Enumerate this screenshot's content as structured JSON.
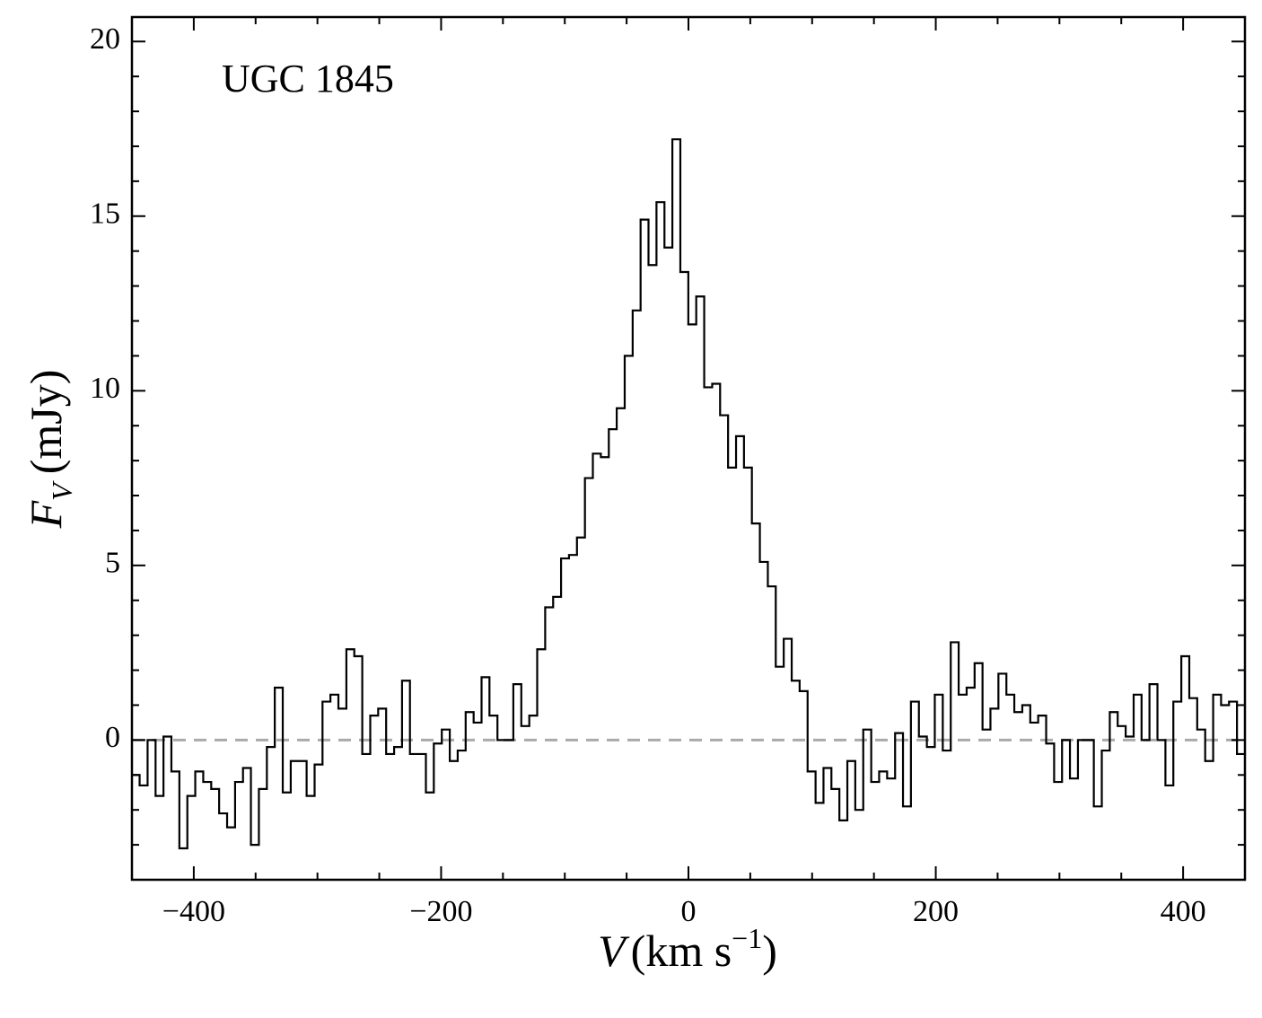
{
  "chart_data": {
    "type": "step",
    "annotation": "UGC 1845",
    "xlabel": {
      "symbol": "V",
      "unit_open": "(km s",
      "exponent": "−1",
      "unit_close": ")"
    },
    "ylabel": {
      "symbol": "F",
      "subscript": "V",
      "unit": "(mJy)"
    },
    "xlim": [
      -450,
      450
    ],
    "ylim": [
      -4,
      20.7
    ],
    "xticks": [
      {
        "value": -400,
        "label": "−400"
      },
      {
        "value": -200,
        "label": "−200"
      },
      0,
      200,
      400
    ],
    "yticks": [
      0,
      5,
      10,
      15,
      20
    ],
    "xminorticks": [
      -350,
      -300,
      -250,
      -150,
      -100,
      -50,
      50,
      100,
      150,
      250,
      300,
      350
    ],
    "yminorticks": [
      -3,
      -2,
      -1,
      1,
      2,
      3,
      4,
      6,
      7,
      8,
      9,
      11,
      12,
      13,
      14,
      16,
      17,
      18,
      19
    ],
    "reference_line": {
      "value": 0,
      "color": "#aaaaaa"
    },
    "x": [
      -447.0,
      -440.6,
      -434.1,
      -427.7,
      -421.3,
      -414.9,
      -408.4,
      -402.0,
      -395.6,
      -389.1,
      -382.7,
      -376.3,
      -369.8,
      -363.4,
      -357.0,
      -350.6,
      -344.1,
      -337.7,
      -331.3,
      -324.8,
      -318.4,
      -312.0,
      -305.5,
      -299.1,
      -292.7,
      -286.3,
      -279.8,
      -273.4,
      -267.0,
      -260.5,
      -254.1,
      -247.7,
      -241.2,
      -234.8,
      -228.4,
      -222.0,
      -215.5,
      -209.1,
      -202.7,
      -196.2,
      -189.8,
      -183.4,
      -176.9,
      -170.5,
      -164.1,
      -157.7,
      -151.2,
      -144.8,
      -138.4,
      -131.9,
      -125.5,
      -119.1,
      -112.6,
      -106.2,
      -99.8,
      -93.4,
      -86.9,
      -80.5,
      -74.1,
      -67.6,
      -61.2,
      -54.8,
      -48.3,
      -41.9,
      -35.5,
      -29.1,
      -22.6,
      -16.2,
      -9.8,
      -3.3,
      3.1,
      9.5,
      16.0,
      22.4,
      28.8,
      35.3,
      41.7,
      48.1,
      54.5,
      61.0,
      67.4,
      73.8,
      80.3,
      86.7,
      93.1,
      99.6,
      106.0,
      112.4,
      118.8,
      125.3,
      131.7,
      138.1,
      144.6,
      151.0,
      157.4,
      163.9,
      170.3,
      176.7,
      183.1,
      189.6,
      196.0,
      202.4,
      208.9,
      215.3,
      221.7,
      228.2,
      234.6,
      241.0,
      247.4,
      253.9,
      260.3,
      266.7,
      273.2,
      279.6,
      286.0,
      292.5,
      298.9,
      305.3,
      311.7,
      318.2,
      324.6,
      331.0,
      337.5,
      343.9,
      350.3,
      356.8,
      363.2,
      369.6,
      376.0,
      382.5,
      388.9,
      395.3,
      401.8,
      408.2,
      414.6,
      421.1,
      427.5,
      433.9,
      440.3,
      446.8
    ],
    "series": [
      {
        "color": "#000000",
        "values": [
          -1.0,
          -1.3,
          0.0,
          -1.6,
          0.1,
          -0.9,
          -3.1,
          -1.6,
          -0.9,
          -1.2,
          -1.4,
          -2.1,
          -2.5,
          -1.2,
          -0.8,
          -3.0,
          -1.4,
          -0.2,
          1.5,
          -1.5,
          -0.6,
          -0.6,
          -1.6,
          -0.7,
          1.1,
          1.3,
          0.9,
          2.6,
          2.4,
          -0.4,
          0.7,
          0.9,
          -0.4,
          -0.2,
          1.7,
          -0.4,
          -0.4,
          -1.5,
          -0.1,
          0.3,
          -0.6,
          -0.3,
          0.8,
          0.5,
          1.8,
          0.7,
          0.0,
          0.0,
          1.6,
          0.4,
          0.7,
          2.6,
          3.8,
          4.1,
          5.2,
          5.3,
          5.8,
          7.5,
          8.2,
          8.1,
          8.9,
          9.5,
          11.0,
          12.3,
          14.9,
          13.6,
          15.4,
          14.1,
          17.2,
          13.4,
          11.9,
          12.7,
          10.1,
          10.2,
          9.3,
          7.8,
          8.7,
          7.8,
          6.2,
          5.1,
          4.4,
          2.1,
          2.9,
          1.7,
          1.4,
          -0.9,
          -1.8,
          -0.8,
          -1.4,
          -2.3,
          -0.6,
          -2.0,
          0.3,
          -1.2,
          -0.9,
          -1.1,
          0.2,
          -1.9,
          1.1,
          0.1,
          -0.2,
          1.3,
          -0.3,
          2.8,
          1.3,
          1.5,
          2.2,
          0.3,
          0.9,
          1.9,
          1.3,
          0.8,
          1.0,
          0.5,
          0.7,
          -0.1,
          -1.2,
          0.0,
          -1.1,
          0.0,
          0.0,
          -1.9,
          -0.3,
          0.8,
          0.4,
          0.1,
          1.3,
          0.0,
          1.6,
          0.0,
          -1.3,
          1.1,
          2.4,
          1.2,
          0.3,
          -0.6,
          1.3,
          1.0,
          1.1,
          -0.4
        ]
      }
    ]
  }
}
